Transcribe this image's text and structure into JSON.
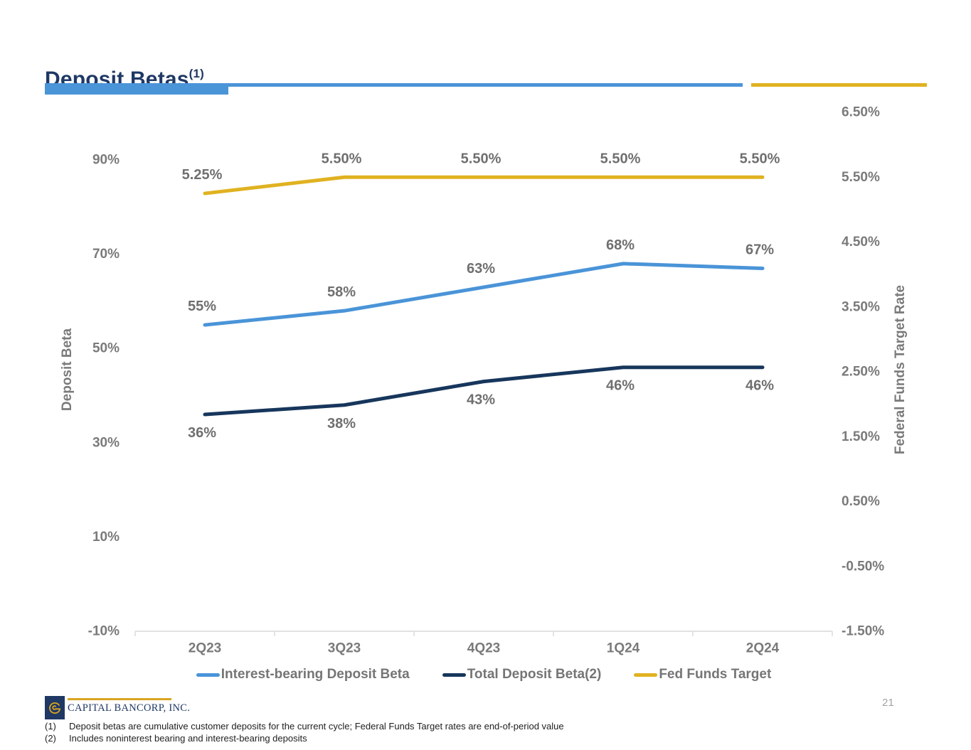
{
  "slide": {
    "title": "Deposit Betas",
    "title_superscript": "(1)",
    "page_number": "21",
    "logo_text": "CAPITAL BANCORP, INC.",
    "footnotes": [
      {
        "marker": "(1)",
        "text": "Deposit betas are cumulative customer deposits for the current cycle; Federal Funds Target rates are end-of-period value"
      },
      {
        "marker": "(2)",
        "text": "Includes noninterest bearing and interest-bearing deposits"
      }
    ]
  },
  "colors": {
    "title_navy": "#1F3864",
    "header_blue": "#4A94D8",
    "header_yellow": "#E0B220",
    "axis_line_gray": "#D9D9D9",
    "tick_text_gray": "#7A7A7A",
    "data_label_gray": "#6F6F6F"
  },
  "chart_data": {
    "type": "line",
    "title": "Deposit Betas",
    "grid": false,
    "legend_position": "bottom",
    "categories": [
      "2Q23",
      "3Q23",
      "4Q23",
      "1Q24",
      "2Q24"
    ],
    "series": [
      {
        "name": "Interest-bearing Deposit Beta",
        "axis": "left",
        "color": "#4A94D8",
        "values": [
          55,
          58,
          63,
          68,
          67
        ],
        "value_labels": [
          "55%",
          "58%",
          "63%",
          "68%",
          "67%"
        ],
        "label_position": "above"
      },
      {
        "name": "Total Deposit Beta(2)",
        "axis": "left",
        "color": "#17365C",
        "values": [
          36,
          38,
          43,
          46,
          46
        ],
        "value_labels": [
          "36%",
          "38%",
          "43%",
          "46%",
          "46%"
        ],
        "label_position": "below"
      },
      {
        "name": "Fed Funds Target",
        "axis": "right",
        "color": "#E0B220",
        "values": [
          5.25,
          5.5,
          5.5,
          5.5,
          5.5
        ],
        "value_labels": [
          "5.25%",
          "5.50%",
          "5.50%",
          "5.50%",
          "5.50%"
        ],
        "label_position": "above"
      }
    ],
    "left_axis": {
      "title": "Deposit Beta",
      "range": [
        -10,
        90
      ],
      "tick_values": [
        90,
        70,
        50,
        30,
        10,
        -10
      ],
      "tick_labels": [
        "90%",
        "70%",
        "50%",
        "30%",
        "10%",
        "-10%"
      ]
    },
    "right_axis": {
      "title": "Federal Funds Target Rate",
      "range": [
        -1.5,
        6.5
      ],
      "tick_values": [
        6.5,
        5.5,
        4.5,
        3.5,
        2.5,
        1.5,
        0.5,
        -0.5,
        -1.5
      ],
      "tick_labels": [
        "6.50%",
        "5.50%",
        "4.50%",
        "3.50%",
        "2.50%",
        "1.50%",
        "0.50%",
        "-0.50%",
        "-1.50%"
      ]
    }
  }
}
